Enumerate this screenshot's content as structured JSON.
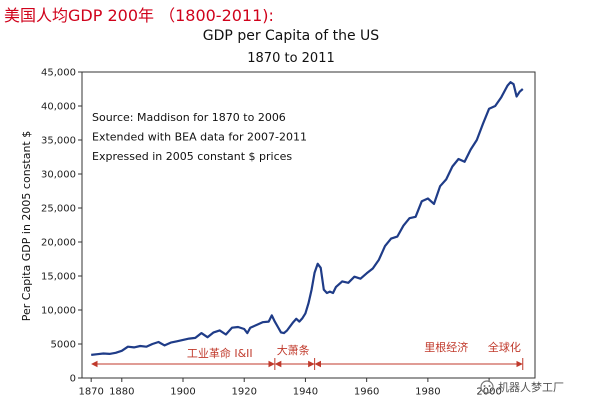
{
  "header": {
    "text": "美国人均GDP 200年 （1800-2011):",
    "color": "#d0021b"
  },
  "chart_data": {
    "type": "line",
    "title": "GDP per Capita of the US",
    "subtitle": "1870 to 2011",
    "xlabel": "",
    "ylabel": "Per Capita GDP in 2005 constant $",
    "xlim": [
      1867,
      2015
    ],
    "ylim": [
      0,
      45000
    ],
    "x_ticks": [
      1870,
      1880,
      1900,
      1920,
      1940,
      1960,
      1980,
      2000
    ],
    "y_ticks": [
      0,
      5000,
      10000,
      15000,
      20000,
      25000,
      30000,
      35000,
      40000,
      45000
    ],
    "y_tick_labels": [
      "0",
      "5000",
      "10,000",
      "15,000",
      "20,000",
      "25,000",
      "30,000",
      "35,000",
      "40,000",
      "45,000"
    ],
    "grid": false,
    "line_color": "#1f3c88",
    "annotation_lines": [
      "Source:  Maddison for 1870 to 2006",
      "Extended with BEA data for 2007-2011",
      "Expressed in 2005 constant $ prices"
    ],
    "series": [
      {
        "x": [
          1870,
          1872,
          1874,
          1876,
          1878,
          1880,
          1882,
          1884,
          1886,
          1888,
          1890,
          1892,
          1894,
          1896,
          1898,
          1900,
          1902,
          1904,
          1906,
          1908,
          1910,
          1912,
          1914,
          1916,
          1918,
          1920,
          1921,
          1922,
          1924,
          1926,
          1928,
          1929,
          1930,
          1931,
          1932,
          1933,
          1934,
          1936,
          1937,
          1938,
          1939,
          1940,
          1941,
          1942,
          1943,
          1944,
          1945,
          1946,
          1947,
          1948,
          1949,
          1950,
          1952,
          1954,
          1956,
          1958,
          1960,
          1962,
          1964,
          1966,
          1968,
          1970,
          1972,
          1974,
          1976,
          1978,
          1980,
          1982,
          1984,
          1986,
          1988,
          1990,
          1992,
          1994,
          1996,
          1998,
          2000,
          2002,
          2004,
          2006,
          2007,
          2008,
          2009,
          2010,
          2011
        ],
        "y": [
          3400,
          3500,
          3600,
          3550,
          3700,
          4000,
          4600,
          4500,
          4700,
          4600,
          5000,
          5300,
          4800,
          5200,
          5400,
          5600,
          5800,
          5900,
          6600,
          6000,
          6700,
          7000,
          6400,
          7400,
          7500,
          7200,
          6600,
          7400,
          7800,
          8200,
          8300,
          9200,
          8300,
          7500,
          6700,
          6600,
          7000,
          8200,
          8700,
          8300,
          8800,
          9500,
          11000,
          13000,
          15500,
          16800,
          16200,
          13000,
          12500,
          12700,
          12500,
          13400,
          14200,
          14000,
          14900,
          14600,
          15400,
          16100,
          17400,
          19400,
          20500,
          20800,
          22400,
          23500,
          23700,
          26000,
          26400,
          25600,
          28200,
          29200,
          31100,
          32200,
          31800,
          33600,
          35000,
          37400,
          39600,
          40000,
          41300,
          43000,
          43500,
          43200,
          41400,
          42100,
          42500
        ]
      }
    ],
    "eras": [
      {
        "label": "工业革命 I&II",
        "from": 1870,
        "to": 1930
      },
      {
        "label": "大萧条",
        "from": 1930,
        "to": 1943
      },
      {
        "label": "里根经济",
        "from": 1943,
        "to": 2011
      },
      {
        "label": "全球化",
        "from": 1997,
        "to": 2011
      }
    ]
  },
  "watermark": "机器人梦工厂"
}
